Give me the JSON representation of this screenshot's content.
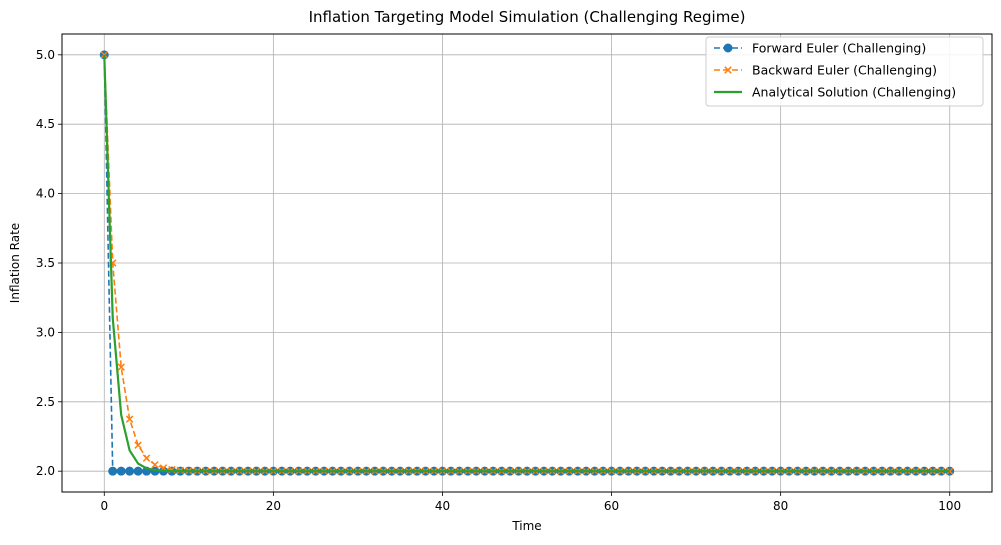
{
  "chart_data": {
    "type": "line",
    "title": "Inflation Targeting Model Simulation (Challenging Regime)",
    "xlabel": "Time",
    "ylabel": "Inflation Rate",
    "xlim": [
      -5,
      105
    ],
    "ylim": [
      1.85,
      5.15
    ],
    "xticks": [
      0,
      20,
      40,
      60,
      80,
      100
    ],
    "xtick_labels": [
      "0",
      "20",
      "40",
      "60",
      "80",
      "100"
    ],
    "yticks": [
      2.0,
      2.5,
      3.0,
      3.5,
      4.0,
      4.5,
      5.0
    ],
    "ytick_labels": [
      "2.0",
      "2.5",
      "3.0",
      "3.5",
      "4.0",
      "4.5",
      "5.0"
    ],
    "grid": true,
    "legend_position": "top-right",
    "series": [
      {
        "name": "Forward Euler (Challenging)",
        "color": "#1f77b4",
        "style": "dashed",
        "marker": "circle",
        "x_start": 0,
        "x_end": 100,
        "x_step": 1,
        "values": [
          5.0,
          2.0,
          2.0,
          2.0,
          2.0,
          2.0,
          2.0,
          2.0,
          2.0,
          2.0,
          2.0,
          2.0,
          2.0,
          2.0,
          2.0,
          2.0,
          2.0,
          2.0,
          2.0,
          2.0,
          2.0,
          2.0,
          2.0,
          2.0,
          2.0,
          2.0,
          2.0,
          2.0,
          2.0,
          2.0,
          2.0,
          2.0,
          2.0,
          2.0,
          2.0,
          2.0,
          2.0,
          2.0,
          2.0,
          2.0,
          2.0,
          2.0,
          2.0,
          2.0,
          2.0,
          2.0,
          2.0,
          2.0,
          2.0,
          2.0,
          2.0,
          2.0,
          2.0,
          2.0,
          2.0,
          2.0,
          2.0,
          2.0,
          2.0,
          2.0,
          2.0,
          2.0,
          2.0,
          2.0,
          2.0,
          2.0,
          2.0,
          2.0,
          2.0,
          2.0,
          2.0,
          2.0,
          2.0,
          2.0,
          2.0,
          2.0,
          2.0,
          2.0,
          2.0,
          2.0,
          2.0,
          2.0,
          2.0,
          2.0,
          2.0,
          2.0,
          2.0,
          2.0,
          2.0,
          2.0,
          2.0,
          2.0,
          2.0,
          2.0,
          2.0,
          2.0,
          2.0,
          2.0,
          2.0,
          2.0,
          2.0
        ]
      },
      {
        "name": "Backward Euler (Challenging)",
        "color": "#ff7f0e",
        "style": "dashed",
        "marker": "x",
        "x_start": 0,
        "x_end": 100,
        "x_step": 1,
        "values": [
          5.0,
          3.5,
          2.75,
          2.375,
          2.1875,
          2.0938,
          2.0469,
          2.0234,
          2.0117,
          2.0059,
          2.0029,
          2.0015,
          2.0007,
          2.0004,
          2.0002,
          2.0001,
          2.0,
          2.0,
          2.0,
          2.0,
          2.0,
          2.0,
          2.0,
          2.0,
          2.0,
          2.0,
          2.0,
          2.0,
          2.0,
          2.0,
          2.0,
          2.0,
          2.0,
          2.0,
          2.0,
          2.0,
          2.0,
          2.0,
          2.0,
          2.0,
          2.0,
          2.0,
          2.0,
          2.0,
          2.0,
          2.0,
          2.0,
          2.0,
          2.0,
          2.0,
          2.0,
          2.0,
          2.0,
          2.0,
          2.0,
          2.0,
          2.0,
          2.0,
          2.0,
          2.0,
          2.0,
          2.0,
          2.0,
          2.0,
          2.0,
          2.0,
          2.0,
          2.0,
          2.0,
          2.0,
          2.0,
          2.0,
          2.0,
          2.0,
          2.0,
          2.0,
          2.0,
          2.0,
          2.0,
          2.0,
          2.0,
          2.0,
          2.0,
          2.0,
          2.0,
          2.0,
          2.0,
          2.0,
          2.0,
          2.0,
          2.0,
          2.0,
          2.0,
          2.0,
          2.0,
          2.0,
          2.0,
          2.0,
          2.0,
          2.0,
          2.0
        ]
      },
      {
        "name": "Analytical Solution (Challenging)",
        "color": "#2ca02c",
        "style": "solid",
        "marker": "none",
        "x_start": 0,
        "x_end": 100,
        "x_step": 1,
        "values": [
          5.0,
          3.1036,
          2.406,
          2.1494,
          2.0549,
          2.0202,
          2.0074,
          2.0027,
          2.001,
          2.0004,
          2.0001,
          2.0001,
          2.0,
          2.0,
          2.0,
          2.0,
          2.0,
          2.0,
          2.0,
          2.0,
          2.0,
          2.0,
          2.0,
          2.0,
          2.0,
          2.0,
          2.0,
          2.0,
          2.0,
          2.0,
          2.0,
          2.0,
          2.0,
          2.0,
          2.0,
          2.0,
          2.0,
          2.0,
          2.0,
          2.0,
          2.0,
          2.0,
          2.0,
          2.0,
          2.0,
          2.0,
          2.0,
          2.0,
          2.0,
          2.0,
          2.0,
          2.0,
          2.0,
          2.0,
          2.0,
          2.0,
          2.0,
          2.0,
          2.0,
          2.0,
          2.0,
          2.0,
          2.0,
          2.0,
          2.0,
          2.0,
          2.0,
          2.0,
          2.0,
          2.0,
          2.0,
          2.0,
          2.0,
          2.0,
          2.0,
          2.0,
          2.0,
          2.0,
          2.0,
          2.0,
          2.0,
          2.0,
          2.0,
          2.0,
          2.0,
          2.0,
          2.0,
          2.0,
          2.0,
          2.0,
          2.0,
          2.0,
          2.0,
          2.0,
          2.0,
          2.0,
          2.0,
          2.0,
          2.0,
          2.0,
          2.0
        ]
      }
    ]
  }
}
